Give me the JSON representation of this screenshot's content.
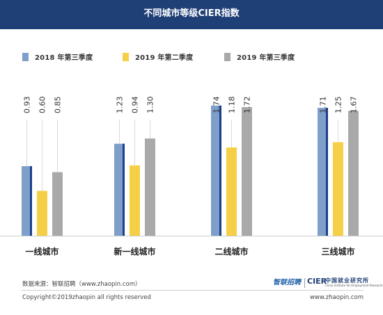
{
  "header": {
    "title": "不同城市等级CIER指数"
  },
  "colors": {
    "header_bg": "#1f3f77",
    "series_2018": "#7f9fcb",
    "series_2018_edge": "#1c3f8c",
    "series_2019q2": "#f5cf45",
    "series_2019q3": "#a9a9a9"
  },
  "chart_data": {
    "type": "bar",
    "categories": [
      "一线城市",
      "新一线城市",
      "二线城市",
      "三线城市"
    ],
    "series": [
      {
        "name": "2018  年第三季度",
        "values": [
          0.93,
          1.23,
          1.74,
          1.71
        ]
      },
      {
        "name": "2019  年第二季度",
        "values": [
          0.6,
          0.94,
          1.18,
          1.25
        ]
      },
      {
        "name": "2019  年第三季度",
        "values": [
          0.85,
          1.3,
          1.72,
          1.67
        ]
      }
    ],
    "value_labels": [
      [
        "0.93",
        "0.60",
        "0.85"
      ],
      [
        "1.23",
        "0.94",
        "1.30"
      ],
      [
        "1.74",
        "1.18",
        "1.72"
      ],
      [
        "1.71",
        "1.25",
        "1.67"
      ]
    ],
    "ylim": [
      0,
      1.98
    ],
    "legend_position": "top-left",
    "grid": false
  },
  "footer": {
    "source": "数据来源：智联招聘（www.zhaopin.com）",
    "copyright": "Copyright©2019zhaopin all rights reserved",
    "website": "www.zhaopin.com",
    "logo_zhaopin": "智联招聘",
    "logo_cier": "CIER",
    "logo_cier_cn": "中国就业研究所",
    "logo_cier_en": "China Institute for Employment Research"
  }
}
